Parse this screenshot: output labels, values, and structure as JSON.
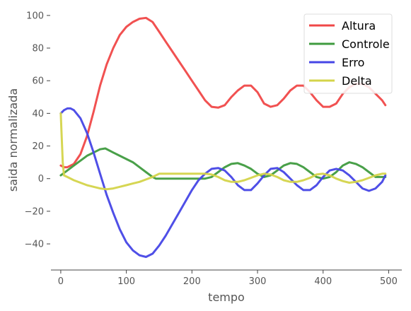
{
  "chart_data": {
    "type": "line",
    "title": "",
    "xlabel": "tempo",
    "ylabel": "saida normalizada",
    "xlim": [
      -15,
      520
    ],
    "ylim": [
      -56,
      106
    ],
    "x_ticks": [
      0,
      100,
      200,
      300,
      400,
      500
    ],
    "y_ticks": [
      -40,
      -20,
      0,
      20,
      40,
      60,
      80,
      100
    ],
    "grid": false,
    "legend_position": "top-right",
    "series": [
      {
        "name": "Altura",
        "color": "#f04848",
        "points": [
          [
            0,
            8
          ],
          [
            5,
            7
          ],
          [
            10,
            7
          ],
          [
            20,
            9
          ],
          [
            30,
            15
          ],
          [
            40,
            26
          ],
          [
            50,
            41
          ],
          [
            60,
            57
          ],
          [
            70,
            70
          ],
          [
            80,
            80
          ],
          [
            90,
            88
          ],
          [
            100,
            93
          ],
          [
            110,
            96
          ],
          [
            120,
            98
          ],
          [
            130,
            98.5
          ],
          [
            140,
            96
          ],
          [
            150,
            90
          ],
          [
            160,
            84
          ],
          [
            170,
            78
          ],
          [
            180,
            72
          ],
          [
            190,
            66
          ],
          [
            200,
            60
          ],
          [
            210,
            54
          ],
          [
            220,
            48
          ],
          [
            230,
            44
          ],
          [
            240,
            43.5
          ],
          [
            250,
            45
          ],
          [
            260,
            50
          ],
          [
            270,
            54
          ],
          [
            280,
            57
          ],
          [
            290,
            57
          ],
          [
            300,
            53
          ],
          [
            310,
            46
          ],
          [
            320,
            44
          ],
          [
            330,
            45
          ],
          [
            340,
            49
          ],
          [
            350,
            54
          ],
          [
            360,
            57
          ],
          [
            370,
            57
          ],
          [
            380,
            53
          ],
          [
            390,
            48
          ],
          [
            400,
            44
          ],
          [
            410,
            44
          ],
          [
            420,
            46
          ],
          [
            430,
            52
          ],
          [
            440,
            56
          ],
          [
            450,
            58
          ],
          [
            460,
            58
          ],
          [
            470,
            56
          ],
          [
            480,
            52
          ],
          [
            490,
            48
          ],
          [
            495,
            45
          ]
        ]
      },
      {
        "name": "Controle",
        "color": "#3f9b3f",
        "points": [
          [
            0,
            2
          ],
          [
            10,
            5
          ],
          [
            20,
            8
          ],
          [
            30,
            11
          ],
          [
            40,
            14
          ],
          [
            50,
            16
          ],
          [
            60,
            18
          ],
          [
            68,
            18.5
          ],
          [
            80,
            16
          ],
          [
            90,
            14
          ],
          [
            100,
            12
          ],
          [
            110,
            10
          ],
          [
            120,
            7
          ],
          [
            130,
            4
          ],
          [
            140,
            1
          ],
          [
            145,
            0
          ],
          [
            160,
            0
          ],
          [
            180,
            0
          ],
          [
            200,
            0
          ],
          [
            220,
            0
          ],
          [
            230,
            1
          ],
          [
            240,
            4
          ],
          [
            250,
            7
          ],
          [
            260,
            9
          ],
          [
            270,
            9.5
          ],
          [
            280,
            8
          ],
          [
            290,
            6
          ],
          [
            300,
            3
          ],
          [
            310,
            1
          ],
          [
            320,
            2
          ],
          [
            330,
            5
          ],
          [
            340,
            8
          ],
          [
            350,
            9.5
          ],
          [
            360,
            9
          ],
          [
            370,
            7
          ],
          [
            380,
            4
          ],
          [
            390,
            1
          ],
          [
            400,
            0
          ],
          [
            410,
            1
          ],
          [
            420,
            4
          ],
          [
            430,
            8
          ],
          [
            440,
            10
          ],
          [
            450,
            9
          ],
          [
            460,
            7
          ],
          [
            470,
            4
          ],
          [
            480,
            1
          ],
          [
            490,
            1
          ],
          [
            495,
            1
          ]
        ]
      },
      {
        "name": "Erro",
        "color": "#4646e6",
        "points": [
          [
            0,
            40
          ],
          [
            5,
            42
          ],
          [
            10,
            43
          ],
          [
            15,
            43
          ],
          [
            20,
            42
          ],
          [
            30,
            37
          ],
          [
            40,
            28
          ],
          [
            50,
            16
          ],
          [
            60,
            3
          ],
          [
            70,
            -10
          ],
          [
            80,
            -21
          ],
          [
            90,
            -31
          ],
          [
            100,
            -39
          ],
          [
            110,
            -44
          ],
          [
            120,
            -47
          ],
          [
            130,
            -48
          ],
          [
            140,
            -46
          ],
          [
            150,
            -41
          ],
          [
            160,
            -35
          ],
          [
            170,
            -28
          ],
          [
            180,
            -21
          ],
          [
            190,
            -14
          ],
          [
            200,
            -7
          ],
          [
            210,
            -1
          ],
          [
            220,
            3
          ],
          [
            230,
            6
          ],
          [
            240,
            6.5
          ],
          [
            250,
            5
          ],
          [
            260,
            1
          ],
          [
            270,
            -4
          ],
          [
            280,
            -7
          ],
          [
            290,
            -7
          ],
          [
            300,
            -3
          ],
          [
            310,
            2
          ],
          [
            320,
            6
          ],
          [
            330,
            6.5
          ],
          [
            340,
            4
          ],
          [
            350,
            0
          ],
          [
            360,
            -4
          ],
          [
            370,
            -7
          ],
          [
            380,
            -7
          ],
          [
            390,
            -4
          ],
          [
            400,
            1
          ],
          [
            410,
            5
          ],
          [
            420,
            6
          ],
          [
            430,
            5
          ],
          [
            440,
            2
          ],
          [
            450,
            -2
          ],
          [
            460,
            -6
          ],
          [
            470,
            -7.5
          ],
          [
            480,
            -6
          ],
          [
            490,
            -2
          ],
          [
            495,
            2
          ]
        ]
      },
      {
        "name": "Delta",
        "color": "#d4d44a",
        "points": [
          [
            0,
            40
          ],
          [
            1,
            30
          ],
          [
            3,
            10
          ],
          [
            5,
            2
          ],
          [
            10,
            1
          ],
          [
            20,
            -1
          ],
          [
            30,
            -2.5
          ],
          [
            40,
            -4
          ],
          [
            50,
            -5
          ],
          [
            60,
            -6
          ],
          [
            70,
            -6.5
          ],
          [
            80,
            -6
          ],
          [
            90,
            -5
          ],
          [
            100,
            -4
          ],
          [
            110,
            -3
          ],
          [
            120,
            -2
          ],
          [
            130,
            -0.5
          ],
          [
            140,
            1
          ],
          [
            150,
            3
          ],
          [
            160,
            3
          ],
          [
            180,
            3
          ],
          [
            200,
            3
          ],
          [
            220,
            3
          ],
          [
            230,
            2.5
          ],
          [
            240,
            1
          ],
          [
            250,
            -1
          ],
          [
            260,
            -2
          ],
          [
            270,
            -2
          ],
          [
            280,
            -1
          ],
          [
            290,
            0.5
          ],
          [
            300,
            2
          ],
          [
            310,
            3
          ],
          [
            320,
            2.5
          ],
          [
            330,
            1
          ],
          [
            340,
            -1
          ],
          [
            350,
            -2
          ],
          [
            360,
            -2
          ],
          [
            370,
            -1
          ],
          [
            380,
            0.5
          ],
          [
            390,
            2.5
          ],
          [
            400,
            3
          ],
          [
            410,
            2
          ],
          [
            420,
            0
          ],
          [
            430,
            -1.5
          ],
          [
            440,
            -2.5
          ],
          [
            450,
            -2
          ],
          [
            460,
            -1
          ],
          [
            470,
            0.5
          ],
          [
            480,
            2
          ],
          [
            490,
            3
          ],
          [
            495,
            3
          ]
        ]
      }
    ]
  }
}
